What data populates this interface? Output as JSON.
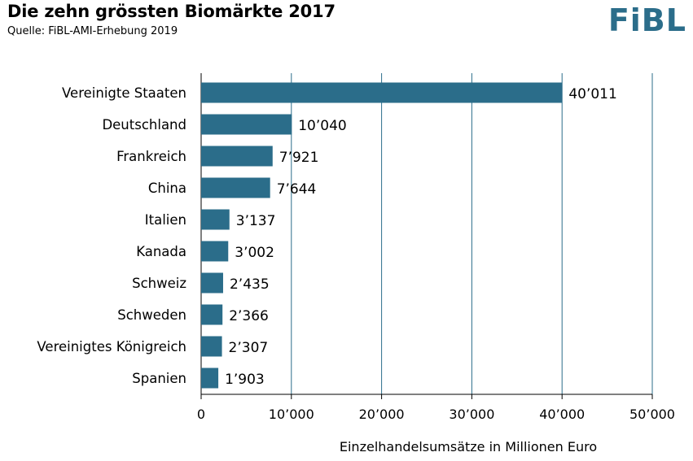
{
  "header": {
    "title": "Die zehn grössten Biomärkte 2017",
    "source": "Quelle: FiBL-AMI-Erhebung 2019",
    "logo_text": "FiBL"
  },
  "colors": {
    "bar": "#2b6d8a",
    "logo": "#2b6d8a",
    "grid": "#2b6d8a"
  },
  "chart_data": {
    "type": "bar",
    "orientation": "horizontal",
    "categories": [
      "Vereinigte Staaten",
      "Deutschland",
      "Frankreich",
      "China",
      "Italien",
      "Kanada",
      "Schweiz",
      "Schweden",
      "Vereinigtes Königreich",
      "Spanien"
    ],
    "values": [
      40011,
      10040,
      7921,
      7644,
      3137,
      3002,
      2435,
      2366,
      2307,
      1903
    ],
    "value_labels": [
      "40’011",
      "10’040",
      "7’921",
      "7’644",
      "3’137",
      "3’002",
      "2’435",
      "2’366",
      "2’307",
      "1’903"
    ],
    "title": "Die zehn grössten Biomärkte 2017",
    "xlabel": "Einzelhandelsumsätze in Millionen Euro",
    "ylabel": "",
    "xlim": [
      0,
      50000
    ],
    "xticks": [
      0,
      10000,
      20000,
      30000,
      40000,
      50000
    ],
    "xtick_labels": [
      "0",
      "10’000",
      "20’000",
      "30’000",
      "40’000",
      "50’000"
    ],
    "grid": true
  }
}
